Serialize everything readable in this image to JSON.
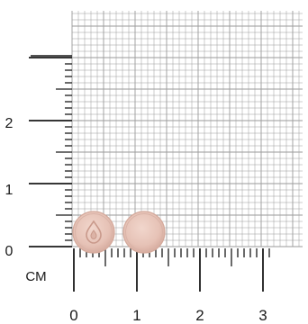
{
  "photo": {
    "colors": {
      "background": "#ffffff",
      "grid_line": "#9a9a9a",
      "ruler_line": "#1a1a1a",
      "tablet_fill": "#e9c9be",
      "tablet_edge": "#d8b2a5",
      "tablet_shadow": "#cfa597"
    }
  },
  "ruler": {
    "unit_label": "CM",
    "x_labels": [
      "0",
      "1",
      "2",
      "3"
    ],
    "y_labels": [
      "0",
      "1",
      "2"
    ]
  },
  "tablets": [
    {
      "name": "tablet-left",
      "debossed_mark": "drop"
    },
    {
      "name": "tablet-right",
      "debossed_mark": ""
    }
  ]
}
